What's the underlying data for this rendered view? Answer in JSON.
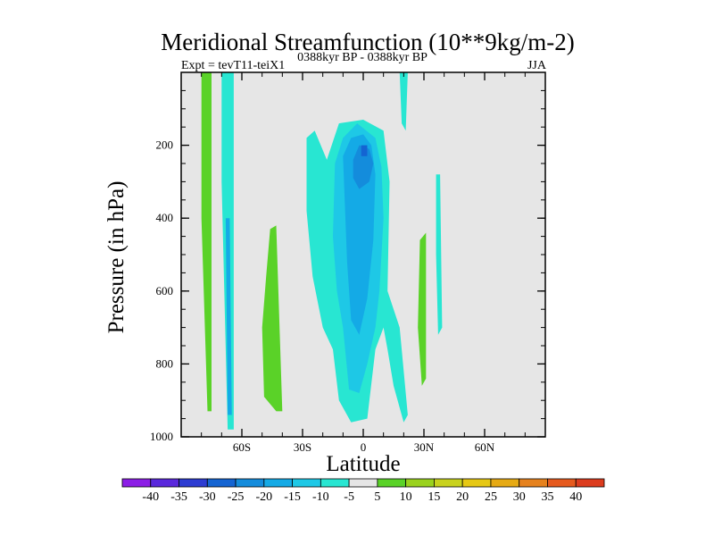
{
  "chart_data": {
    "type": "heatmap",
    "title": "Meridional Streamfunction (10**9kg/m-2)",
    "subtitle_left": "Expt = tevT11-teiX1",
    "subtitle_center": "0388kyr BP - 0388kyr BP",
    "subtitle_right": "JJA",
    "xlabel": "Latitude",
    "ylabel": "Pressure (in hPa)",
    "xlim": [
      -90,
      90
    ],
    "ylim": [
      1000,
      0
    ],
    "x_ticks": [
      {
        "value": -60,
        "label": "60S"
      },
      {
        "value": -30,
        "label": "30S"
      },
      {
        "value": 0,
        "label": "0"
      },
      {
        "value": 30,
        "label": "30N"
      },
      {
        "value": 60,
        "label": "60N"
      }
    ],
    "y_ticks": [
      {
        "value": 200,
        "label": "200"
      },
      {
        "value": 400,
        "label": "400"
      },
      {
        "value": 600,
        "label": "600"
      },
      {
        "value": 800,
        "label": "800"
      },
      {
        "value": 1000,
        "label": "1000"
      }
    ],
    "background_level": "-5 to 5 (neutral grey)",
    "levels": [
      {
        "label": "-40",
        "color": "#8c1ee6"
      },
      {
        "label": "-35",
        "color": "#5a28dc"
      },
      {
        "label": "-30",
        "color": "#2d3cd2"
      },
      {
        "label": "-25",
        "color": "#1464d2"
      },
      {
        "label": "-20",
        "color": "#148cdc"
      },
      {
        "label": "-15",
        "color": "#14aae6"
      },
      {
        "label": "-10",
        "color": "#1ec8e6"
      },
      {
        "label": "-5",
        "color": "#28e6d2"
      },
      {
        "label": "5",
        "color": "#e6e6e6"
      },
      {
        "label": "10",
        "color": "#5ad228"
      },
      {
        "label": "15",
        "color": "#9ad21e"
      },
      {
        "label": "20",
        "color": "#c8d21e"
      },
      {
        "label": "25",
        "color": "#e6c814"
      },
      {
        "label": "30",
        "color": "#e6aa14"
      },
      {
        "label": "35",
        "color": "#e6821e"
      },
      {
        "label": "40",
        "color": "#e65a1e"
      },
      {
        "label": "",
        "color": "#dc3c1e"
      }
    ],
    "contour_regions": [
      {
        "name": "southern-polar-positive-band",
        "level": 10,
        "color": "#5ad228",
        "points": [
          [
            -80,
            0
          ],
          [
            -75,
            0
          ],
          [
            -75,
            930
          ],
          [
            -77,
            930
          ],
          [
            -80,
            400
          ]
        ]
      },
      {
        "name": "southern-midlat-negative-band",
        "level": -10,
        "color": "#28e6d2",
        "points": [
          [
            -70,
            0
          ],
          [
            -64,
            0
          ],
          [
            -64,
            980
          ],
          [
            -67,
            980
          ],
          [
            -70,
            300
          ]
        ]
      },
      {
        "name": "southern-midlat-negative-core",
        "level": -15,
        "color": "#14aae6",
        "points": [
          [
            -68,
            400
          ],
          [
            -66,
            400
          ],
          [
            -65,
            940
          ],
          [
            -67,
            940
          ]
        ]
      },
      {
        "name": "southern-subtropics-positive-cell",
        "level": 10,
        "color": "#5ad228",
        "points": [
          [
            -46,
            430
          ],
          [
            -43,
            420
          ],
          [
            -40,
            930
          ],
          [
            -43,
            930
          ],
          [
            -49,
            890
          ],
          [
            -50,
            700
          ],
          [
            -48,
            560
          ]
        ]
      },
      {
        "name": "hadley-cell-outer",
        "level": -5,
        "color": "#28e6d2",
        "points": [
          [
            -28,
            180
          ],
          [
            -24,
            160
          ],
          [
            -18,
            240
          ],
          [
            -12,
            140
          ],
          [
            0,
            130
          ],
          [
            10,
            160
          ],
          [
            13,
            300
          ],
          [
            12,
            600
          ],
          [
            18,
            700
          ],
          [
            22,
            940
          ],
          [
            20,
            960
          ],
          [
            15,
            860
          ],
          [
            12,
            760
          ],
          [
            10,
            700
          ],
          [
            6,
            760
          ],
          [
            2,
            950
          ],
          [
            -6,
            960
          ],
          [
            -12,
            900
          ],
          [
            -15,
            760
          ],
          [
            -20,
            700
          ],
          [
            -25,
            560
          ],
          [
            -28,
            380
          ]
        ]
      },
      {
        "name": "hadley-cell-mid",
        "level": -10,
        "color": "#1ec8e6",
        "points": [
          [
            -14,
            250
          ],
          [
            -10,
            180
          ],
          [
            -3,
            140
          ],
          [
            6,
            180
          ],
          [
            9,
            260
          ],
          [
            10,
            400
          ],
          [
            8,
            600
          ],
          [
            6,
            700
          ],
          [
            2,
            800
          ],
          [
            -2,
            880
          ],
          [
            -7,
            870
          ],
          [
            -10,
            700
          ],
          [
            -13,
            600
          ],
          [
            -15,
            450
          ]
        ]
      },
      {
        "name": "hadley-cell-inner",
        "level": -15,
        "color": "#14aae6",
        "points": [
          [
            -10,
            230
          ],
          [
            -6,
            180
          ],
          [
            0,
            170
          ],
          [
            4,
            200
          ],
          [
            6,
            280
          ],
          [
            5,
            460
          ],
          [
            2,
            620
          ],
          [
            -2,
            720
          ],
          [
            -6,
            680
          ],
          [
            -8,
            520
          ]
        ]
      },
      {
        "name": "hadley-cell-core",
        "level": -20,
        "color": "#148cdc",
        "points": [
          [
            -5,
            240
          ],
          [
            -2,
            200
          ],
          [
            3,
            210
          ],
          [
            5,
            250
          ],
          [
            3,
            300
          ],
          [
            -2,
            320
          ],
          [
            -5,
            290
          ]
        ]
      },
      {
        "name": "hadley-cell-peak",
        "level": -25,
        "color": "#1464d2",
        "points": [
          [
            -1,
            200
          ],
          [
            2,
            200
          ],
          [
            2,
            230
          ],
          [
            -1,
            230
          ]
        ]
      },
      {
        "name": "northern-subtropics-positive-band",
        "level": 10,
        "color": "#5ad228",
        "points": [
          [
            28,
            460
          ],
          [
            31,
            440
          ],
          [
            31,
            840
          ],
          [
            29,
            860
          ],
          [
            27,
            700
          ]
        ]
      },
      {
        "name": "northern-midlat-negative-band",
        "level": -10,
        "color": "#28e6d2",
        "points": [
          [
            36,
            280
          ],
          [
            38,
            280
          ],
          [
            39,
            700
          ],
          [
            37,
            720
          ],
          [
            36,
            500
          ]
        ]
      },
      {
        "name": "northern-top-negative-sliver",
        "level": -10,
        "color": "#28e6d2",
        "points": [
          [
            18,
            0
          ],
          [
            22,
            0
          ],
          [
            21,
            160
          ],
          [
            19,
            140
          ]
        ]
      }
    ]
  }
}
